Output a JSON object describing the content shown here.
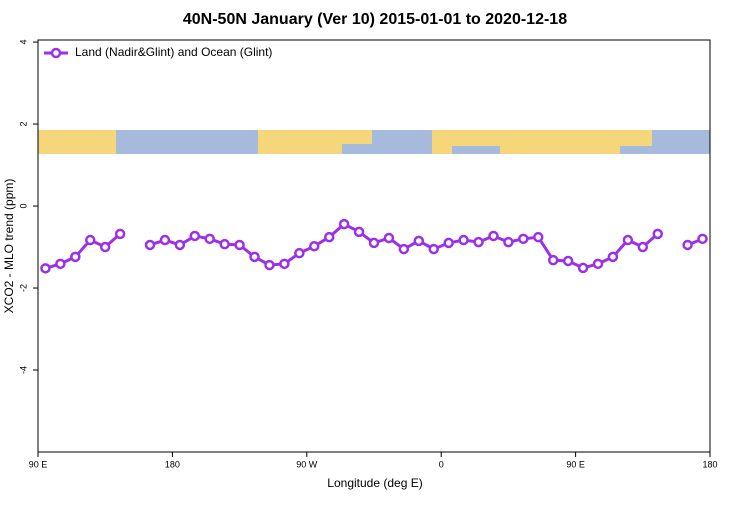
{
  "chart_data": {
    "type": "line",
    "title": "40N-50N January (Ver 10)   2015-01-01 to 2020-12-18",
    "xlabel": "Longitude (deg E)",
    "ylabel": "XCO2 - MLO trend (ppm)",
    "x": [
      95,
      105,
      115,
      125,
      135,
      145,
      155,
      165,
      175,
      185,
      195,
      205,
      215,
      225,
      235,
      245,
      255,
      265,
      275,
      285,
      295,
      305,
      315,
      325,
      335,
      345,
      355,
      365,
      375,
      385,
      395,
      405,
      415,
      425,
      435,
      445,
      455,
      465,
      475,
      485,
      495,
      505,
      515,
      525,
      535
    ],
    "series": [
      {
        "name": "Land (Nadir&Glint) and Ocean (Glint)",
        "color": "#9b30e8",
        "values": [
          -1.52,
          -1.41,
          -1.24,
          -0.83,
          -1.0,
          -0.68,
          null,
          -0.95,
          -0.83,
          -0.95,
          -0.73,
          -0.8,
          -0.93,
          -0.95,
          -1.24,
          -1.44,
          -1.41,
          -1.15,
          -0.98,
          -0.76,
          -0.44,
          -0.63,
          -0.9,
          -0.78,
          -1.05,
          -0.85,
          -1.05,
          -0.9,
          -0.83,
          -0.88,
          -0.73,
          -0.88,
          -0.8,
          -0.76,
          -1.32,
          -1.34,
          -1.51,
          -1.41,
          -1.24,
          -0.83,
          -1.0,
          -0.68,
          null,
          -0.95,
          -0.8
        ]
      }
    ],
    "xlim": [
      90,
      540
    ],
    "xticks": [
      {
        "value": 90,
        "label": "90 E"
      },
      {
        "value": 180,
        "label": "180"
      },
      {
        "value": 270,
        "label": "90 W"
      },
      {
        "value": 360,
        "label": "0"
      },
      {
        "value": 450,
        "label": "90 E"
      },
      {
        "value": 540,
        "label": "180"
      }
    ],
    "ylim": [
      -6,
      4.05
    ],
    "yticks": [
      4,
      2,
      0,
      -2,
      -4
    ],
    "legend": "top-left"
  }
}
